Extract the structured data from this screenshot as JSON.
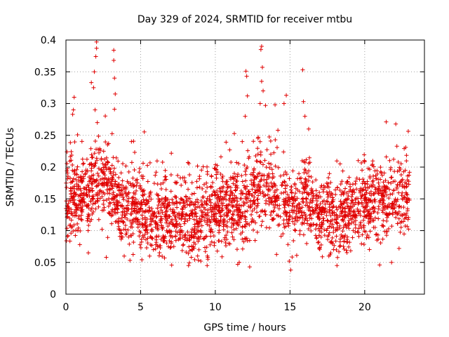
{
  "chart_data": {
    "type": "scatter",
    "title": "Day 329 of 2024, SRMTID for receiver mtbu",
    "xlabel": "GPS time / hours",
    "ylabel": "SRMTID / TECUs",
    "xlim": [
      0,
      24
    ],
    "ylim": [
      0,
      0.4
    ],
    "x_ticks": [
      0,
      5,
      10,
      15,
      20
    ],
    "x_tick_labels": [
      "0",
      "5",
      "10",
      "15",
      "20"
    ],
    "y_ticks": [
      0,
      0.05,
      0.1,
      0.15,
      0.2,
      0.25,
      0.3,
      0.35,
      0.4
    ],
    "y_tick_labels": [
      "0",
      "0.05",
      "0.1",
      "0.15",
      "0.2",
      "0.25",
      "0.3",
      "0.35",
      "0.4"
    ],
    "grid": true,
    "marker": "plus",
    "series": [
      {
        "name": "SRMTID",
        "color": "#e00000",
        "x_range": [
          0,
          23
        ],
        "baseline_by_hour": [
          0.145,
          0.155,
          0.18,
          0.17,
          0.135,
          0.13,
          0.125,
          0.12,
          0.115,
          0.12,
          0.13,
          0.14,
          0.14,
          0.17,
          0.155,
          0.14,
          0.15,
          0.125,
          0.12,
          0.125,
          0.145,
          0.14,
          0.15,
          0.15
        ],
        "peaks": [
          {
            "x": 0.55,
            "y": 0.31
          },
          {
            "x": 0.5,
            "y": 0.29
          },
          {
            "x": 0.45,
            "y": 0.283
          },
          {
            "x": 1.7,
            "y": 0.333
          },
          {
            "x": 1.85,
            "y": 0.325
          },
          {
            "x": 1.9,
            "y": 0.35
          },
          {
            "x": 2.05,
            "y": 0.397
          },
          {
            "x": 2.05,
            "y": 0.387
          },
          {
            "x": 2.0,
            "y": 0.374
          },
          {
            "x": 1.95,
            "y": 0.29
          },
          {
            "x": 2.1,
            "y": 0.27
          },
          {
            "x": 3.2,
            "y": 0.384
          },
          {
            "x": 3.2,
            "y": 0.368
          },
          {
            "x": 3.25,
            "y": 0.34
          },
          {
            "x": 3.3,
            "y": 0.315
          },
          {
            "x": 3.25,
            "y": 0.291
          },
          {
            "x": 12.05,
            "y": 0.351
          },
          {
            "x": 12.1,
            "y": 0.343
          },
          {
            "x": 12.15,
            "y": 0.312
          },
          {
            "x": 12.0,
            "y": 0.28
          },
          {
            "x": 13.1,
            "y": 0.39
          },
          {
            "x": 13.05,
            "y": 0.385
          },
          {
            "x": 13.15,
            "y": 0.357
          },
          {
            "x": 13.1,
            "y": 0.335
          },
          {
            "x": 13.2,
            "y": 0.32
          },
          {
            "x": 13.0,
            "y": 0.3
          },
          {
            "x": 14.0,
            "y": 0.298
          },
          {
            "x": 14.6,
            "y": 0.3
          },
          {
            "x": 14.75,
            "y": 0.313
          },
          {
            "x": 15.85,
            "y": 0.353
          },
          {
            "x": 15.9,
            "y": 0.303
          },
          {
            "x": 16.0,
            "y": 0.28
          },
          {
            "x": 16.25,
            "y": 0.26
          }
        ],
        "lows": [
          {
            "x": 1.5,
            "y": 0.065
          },
          {
            "x": 2.7,
            "y": 0.058
          },
          {
            "x": 3.9,
            "y": 0.06
          },
          {
            "x": 5.6,
            "y": 0.06
          },
          {
            "x": 6.6,
            "y": 0.057
          },
          {
            "x": 9.5,
            "y": 0.055
          },
          {
            "x": 11.5,
            "y": 0.047
          },
          {
            "x": 11.6,
            "y": 0.05
          },
          {
            "x": 12.3,
            "y": 0.043
          },
          {
            "x": 15.05,
            "y": 0.038
          },
          {
            "x": 14.95,
            "y": 0.052
          },
          {
            "x": 17.6,
            "y": 0.06
          },
          {
            "x": 21.0,
            "y": 0.046
          },
          {
            "x": 21.8,
            "y": 0.05
          },
          {
            "x": 22.3,
            "y": 0.072
          }
        ]
      }
    ]
  }
}
